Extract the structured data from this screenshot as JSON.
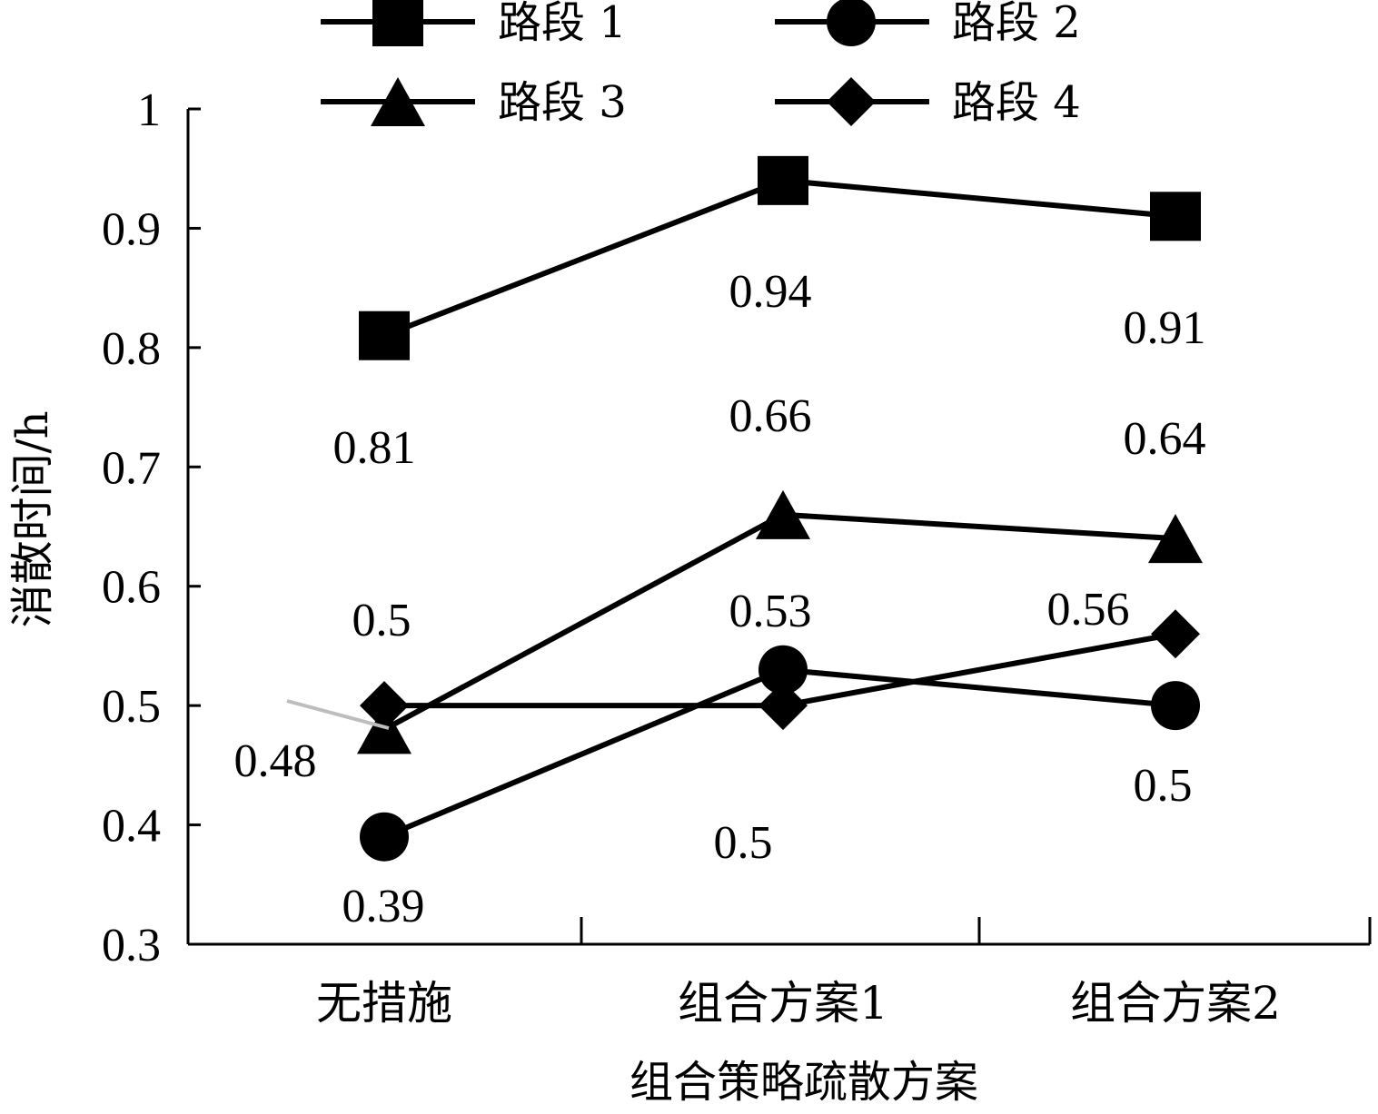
{
  "chart_data": {
    "type": "line",
    "categories": [
      "无措施",
      "组合方案1",
      "组合方案2"
    ],
    "xlabel": "组合策略疏散方案",
    "ylabel": "消散时间/h",
    "ylim": [
      0.3,
      1.0
    ],
    "yticks": [
      "0.3",
      "0.4",
      "0.5",
      "0.6",
      "0.7",
      "0.8",
      "0.9",
      "1"
    ],
    "ytick_values": [
      0.3,
      0.4,
      0.5,
      0.6,
      0.7,
      0.8,
      0.9,
      1.0
    ],
    "grid": false,
    "legend_position": "top",
    "series": [
      {
        "name": "路段 1",
        "marker": "square",
        "values": [
          0.81,
          0.94,
          0.91
        ],
        "labels": [
          "0.81",
          "0.94",
          "0.91"
        ]
      },
      {
        "name": "路段 2",
        "marker": "circle",
        "values": [
          0.39,
          0.53,
          0.5
        ],
        "labels": [
          "0.39",
          "0.53",
          "0.5"
        ]
      },
      {
        "name": "路段 3",
        "marker": "triangle",
        "values": [
          0.48,
          0.66,
          0.64
        ],
        "labels": [
          "0.48",
          "0.66",
          "0.64"
        ]
      },
      {
        "name": "路段 4",
        "marker": "diamond",
        "values": [
          0.5,
          0.5,
          0.56
        ],
        "labels": [
          "0.5",
          "0.5",
          "0.56"
        ]
      }
    ]
  }
}
